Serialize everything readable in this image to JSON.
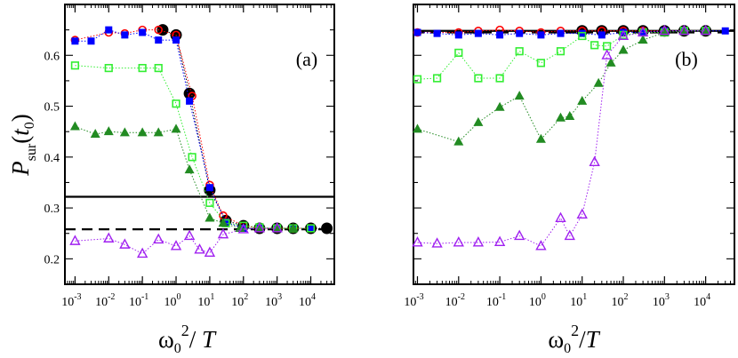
{
  "chart_data": [
    {
      "panel_label": "(a)",
      "type": "scatter",
      "xscale": "log",
      "xlim": [
        0.0005,
        50000
      ],
      "ylim": [
        0.15,
        0.7
      ],
      "x_tick_labels": [
        "10^-3",
        "10^-2",
        "10^-1",
        "10^0",
        "10^1",
        "10^2",
        "10^3",
        "10^4"
      ],
      "y_tick_labels": [
        "0.2",
        "0.3",
        "0.4",
        "0.5",
        "0.6"
      ],
      "y_ticks": [
        0.2,
        0.3,
        0.4,
        0.5,
        0.6
      ],
      "ylabel": "P_sur(t_0)",
      "xlabel": "ω_0^2 / T",
      "hlines": [
        {
          "y": 0.322,
          "style": "solid"
        },
        {
          "y": 0.258,
          "style": "dashed"
        }
      ],
      "series": [
        {
          "marker": "circle-filled",
          "color": "#000000",
          "x": [
            0.4,
            1,
            2.5,
            10,
            30,
            100,
            300,
            1000,
            3000,
            10000,
            30000
          ],
          "y": [
            0.65,
            0.64,
            0.525,
            0.335,
            0.275,
            0.265,
            0.26,
            0.26,
            0.26,
            0.26,
            0.26
          ]
        },
        {
          "marker": "circle-open",
          "color": "#ff0000",
          "x": [
            0.001,
            0.01,
            0.03,
            0.1,
            0.3,
            1,
            3,
            10,
            25,
            100,
            300,
            1000,
            3000,
            10000
          ],
          "y": [
            0.63,
            0.645,
            0.643,
            0.65,
            0.65,
            0.64,
            0.52,
            0.345,
            0.285,
            0.265,
            0.26,
            0.26,
            0.26,
            0.26
          ]
        },
        {
          "marker": "square-filled",
          "color": "#0000ff",
          "x": [
            0.001,
            0.003,
            0.01,
            0.03,
            0.1,
            0.3,
            1,
            2.5,
            10,
            30,
            100,
            300,
            1000,
            3000,
            10000
          ],
          "y": [
            0.628,
            0.628,
            0.65,
            0.64,
            0.645,
            0.63,
            0.63,
            0.51,
            0.34,
            0.272,
            0.26,
            0.26,
            0.26,
            0.26,
            0.26
          ]
        },
        {
          "marker": "square-open",
          "color": "#33ee33",
          "x": [
            0.001,
            0.01,
            0.1,
            0.3,
            1,
            3,
            10,
            30,
            100,
            300,
            1000,
            3000,
            10000
          ],
          "y": [
            0.58,
            0.575,
            0.575,
            0.575,
            0.505,
            0.4,
            0.31,
            0.27,
            0.265,
            0.262,
            0.26,
            0.26,
            0.26
          ]
        },
        {
          "marker": "triangle-filled",
          "color": "#228b22",
          "x": [
            0.001,
            0.004,
            0.01,
            0.03,
            0.1,
            0.3,
            1,
            2.5,
            10,
            25,
            80,
            300,
            1000,
            3000
          ],
          "y": [
            0.46,
            0.445,
            0.45,
            0.448,
            0.448,
            0.448,
            0.455,
            0.375,
            0.28,
            0.27,
            0.26,
            0.26,
            0.26,
            0.26
          ]
        },
        {
          "marker": "triangle-open",
          "color": "#a020f0",
          "x": [
            0.001,
            0.01,
            0.03,
            0.1,
            0.3,
            1,
            2.5,
            5,
            10,
            25,
            100,
            300,
            1000
          ],
          "y": [
            0.235,
            0.24,
            0.228,
            0.21,
            0.238,
            0.225,
            0.245,
            0.218,
            0.212,
            0.248,
            0.258,
            0.26,
            0.26
          ]
        }
      ]
    },
    {
      "panel_label": "(b)",
      "type": "scatter",
      "xscale": "log",
      "xlim": [
        0.0008,
        50000
      ],
      "ylim": [
        0.15,
        0.7
      ],
      "x_tick_labels": [
        "10^-3",
        "10^-2",
        "10^-1",
        "10^0",
        "10^1",
        "10^2",
        "10^3",
        "10^4"
      ],
      "xlabel": "ω_0^2/T",
      "hlines": [
        {
          "y": 0.648,
          "style": "solid"
        },
        {
          "y": 0.645,
          "style": "dashed"
        }
      ],
      "series": [
        {
          "marker": "circle-filled",
          "color": "#000000",
          "x": [
            10,
            30,
            100,
            300,
            1000,
            3000,
            10000
          ],
          "y": [
            0.648,
            0.648,
            0.648,
            0.648,
            0.648,
            0.648,
            0.648
          ]
        },
        {
          "marker": "circle-open",
          "color": "#ff0000",
          "x": [
            0.001,
            0.01,
            0.03,
            0.1,
            0.3,
            1,
            3,
            10,
            30,
            100,
            300,
            1000,
            3000,
            10000
          ],
          "y": [
            0.645,
            0.645,
            0.648,
            0.65,
            0.648,
            0.645,
            0.648,
            0.648,
            0.648,
            0.648,
            0.648,
            0.648,
            0.648,
            0.648
          ]
        },
        {
          "marker": "square-filled",
          "color": "#0000ff",
          "x": [
            0.001,
            0.003,
            0.01,
            0.03,
            0.1,
            0.3,
            1,
            3,
            10,
            30,
            100,
            300,
            1000,
            3000,
            10000,
            30000
          ],
          "y": [
            0.645,
            0.643,
            0.64,
            0.643,
            0.64,
            0.643,
            0.64,
            0.643,
            0.643,
            0.64,
            0.645,
            0.645,
            0.648,
            0.648,
            0.648,
            0.648
          ]
        },
        {
          "marker": "square-open",
          "color": "#33ee33",
          "x": [
            0.001,
            0.003,
            0.01,
            0.03,
            0.1,
            0.3,
            1,
            3,
            10,
            20,
            40,
            100,
            300,
            1000,
            3000,
            10000
          ],
          "y": [
            0.553,
            0.555,
            0.605,
            0.555,
            0.555,
            0.608,
            0.585,
            0.608,
            0.638,
            0.62,
            0.618,
            0.64,
            0.645,
            0.645,
            0.648,
            0.648
          ]
        },
        {
          "marker": "triangle-filled",
          "color": "#228b22",
          "x": [
            0.001,
            0.01,
            0.03,
            0.1,
            0.3,
            1,
            3,
            5,
            10,
            25,
            50,
            100,
            300,
            1000,
            3000,
            10000
          ],
          "y": [
            0.455,
            0.43,
            0.468,
            0.498,
            0.52,
            0.435,
            0.477,
            0.48,
            0.51,
            0.545,
            0.585,
            0.61,
            0.63,
            0.645,
            0.648,
            0.648
          ]
        },
        {
          "marker": "triangle-open",
          "color": "#a020f0",
          "x": [
            0.001,
            0.003,
            0.01,
            0.03,
            0.1,
            0.3,
            1,
            3,
            5,
            10,
            20,
            40,
            100,
            300,
            1000,
            3000,
            10000
          ],
          "y": [
            0.232,
            0.23,
            0.232,
            0.232,
            0.233,
            0.245,
            0.225,
            0.28,
            0.245,
            0.287,
            0.39,
            0.6,
            0.638,
            0.645,
            0.648,
            0.648,
            0.648
          ]
        }
      ]
    }
  ]
}
